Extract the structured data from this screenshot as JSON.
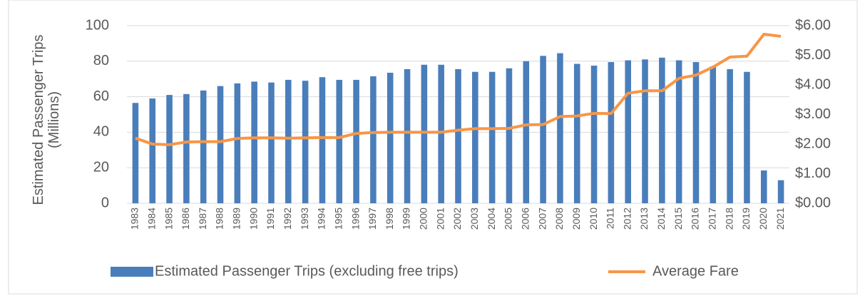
{
  "chart_data": {
    "type": "bar",
    "categories": [
      "1983",
      "1984",
      "1985",
      "1986",
      "1987",
      "1988",
      "1989",
      "1990",
      "1991",
      "1992",
      "1993",
      "1994",
      "1995",
      "1996",
      "1997",
      "1998",
      "1999",
      "2000",
      "2001",
      "2002",
      "2003",
      "2004",
      "2005",
      "2006",
      "2007",
      "2008",
      "2009",
      "2010",
      "2011",
      "2012",
      "2013",
      "2014",
      "2015",
      "2016",
      "2017",
      "2018",
      "2019",
      "2020",
      "2021"
    ],
    "ylabel": "Estimated Passenger Trips (Millions)",
    "series": [
      {
        "name": "Estimated Passenger Trips (excluding free trips)",
        "type": "bar",
        "color": "#4a7ebb",
        "values": [
          56.5,
          59,
          61,
          61.5,
          63.5,
          66,
          67.5,
          68.5,
          68,
          69.5,
          69,
          71,
          69.5,
          69.5,
          71.5,
          73.5,
          75.5,
          78,
          78,
          75.5,
          74,
          74,
          76,
          80,
          83,
          84.5,
          78.5,
          77.5,
          79.5,
          80.5,
          81,
          82,
          80.5,
          79.5,
          77,
          75.5,
          74,
          18.5,
          13
        ]
      },
      {
        "name": "Average Fare",
        "type": "line",
        "axis": "y2",
        "color": "#f79646",
        "values": [
          2.2,
          2.0,
          1.98,
          2.07,
          2.08,
          2.08,
          2.19,
          2.21,
          2.21,
          2.2,
          2.21,
          2.22,
          2.22,
          2.36,
          2.39,
          2.4,
          2.4,
          2.4,
          2.4,
          2.47,
          2.52,
          2.52,
          2.53,
          2.65,
          2.66,
          2.93,
          2.95,
          3.04,
          3.03,
          3.72,
          3.8,
          3.8,
          4.22,
          4.33,
          4.6,
          4.94,
          4.97,
          5.71,
          5.64
        ]
      }
    ],
    "ylim": [
      0,
      100
    ],
    "yticks": [
      0,
      20,
      40,
      60,
      80,
      100
    ],
    "y2lim": [
      0,
      6
    ],
    "y2ticks": [
      {
        "value": 0,
        "label": "$0.00"
      },
      {
        "value": 1,
        "label": "$1.00"
      },
      {
        "value": 2,
        "label": "$2.00"
      },
      {
        "value": 3,
        "label": "$3.00"
      },
      {
        "value": 4,
        "label": "$4.00"
      },
      {
        "value": 5,
        "label": "$5.00"
      },
      {
        "value": 6,
        "label": "$6.00"
      }
    ],
    "grid": true,
    "legend": "bottom"
  }
}
